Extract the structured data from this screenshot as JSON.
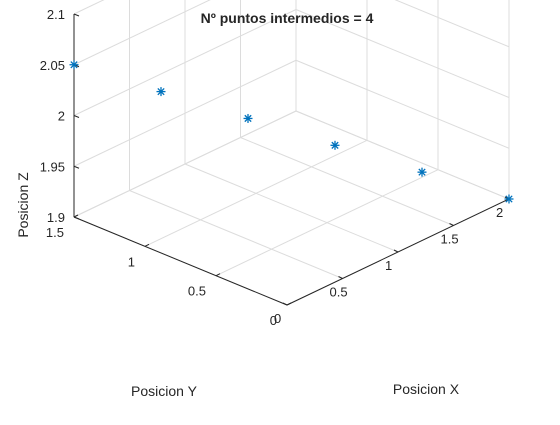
{
  "chart_data": {
    "type": "scatter",
    "title": "Nº puntos intermedios = 4",
    "xlabel": "Posicion X",
    "ylabel": "Posicion Y",
    "zlabel": "Posicion Z",
    "xlim": [
      0,
      2
    ],
    "ylim": [
      0,
      1.5
    ],
    "zlim": [
      1.9,
      2.1
    ],
    "xticks": [
      0,
      0.5,
      1,
      1.5,
      2
    ],
    "xtick_labels": [
      "0",
      "0.5",
      "1",
      "1.5",
      "2"
    ],
    "yticks": [
      0,
      0.5,
      1,
      1.5
    ],
    "ytick_labels": [
      "0",
      "0.5",
      "1",
      "1.5"
    ],
    "zticks": [
      1.9,
      1.95,
      2,
      2.05,
      2.1
    ],
    "ztick_labels": [
      "1.9",
      "1.95",
      "2",
      "2.05",
      "2.1"
    ],
    "grid": true,
    "marker": "*",
    "color": "#0072BD",
    "x": [
      0,
      0.4,
      0.8,
      1.2,
      1.6,
      2.0
    ],
    "y": [
      1.5,
      1.2,
      0.9,
      0.6,
      0.3,
      0.0
    ],
    "z": [
      2.05,
      2.02,
      1.99,
      1.96,
      1.93,
      1.9
    ]
  }
}
